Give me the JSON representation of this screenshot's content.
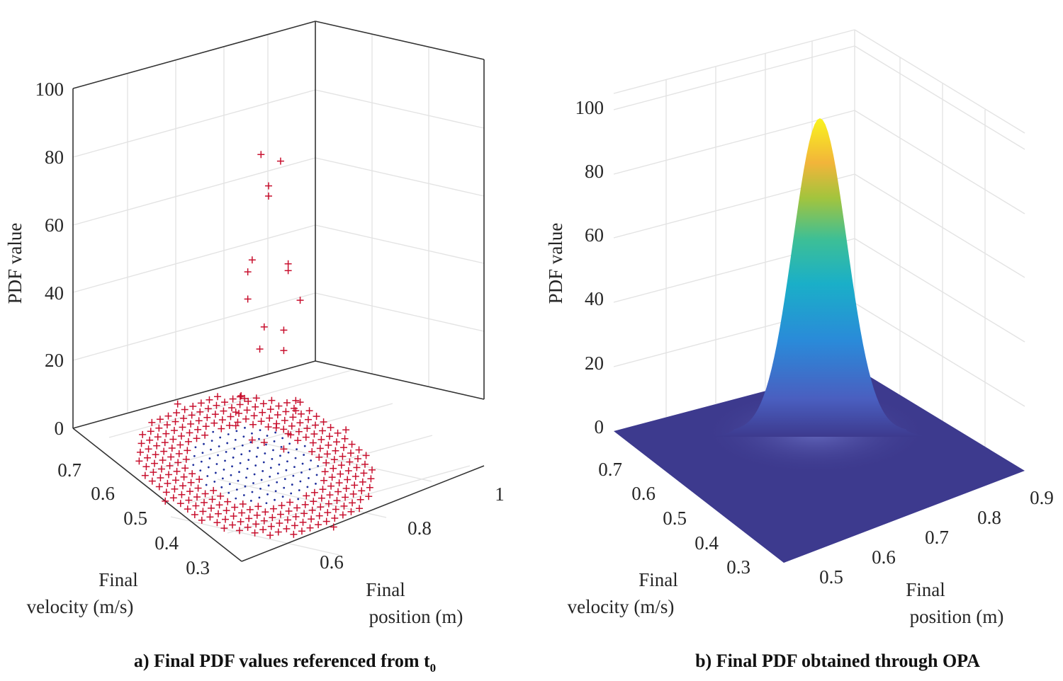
{
  "chart_data": [
    {
      "type": "scatter3d",
      "marker": "+",
      "marker_color": "#c8102e",
      "dot_color": "#1f2f9c",
      "zlabel": "PDF value",
      "xlabel_lines": [
        "Final",
        "position (m)"
      ],
      "ylabel_lines": [
        "Final",
        "velocity (m/s)"
      ],
      "zlim": [
        0,
        100
      ],
      "z_ticks": [
        "0",
        "20",
        "40",
        "60",
        "80",
        "100"
      ],
      "y_ticks": [
        "0.7",
        "0.6",
        "0.5",
        "0.4",
        "0.3"
      ],
      "x_ticks": [
        "0.6",
        "0.8",
        "1"
      ],
      "caption_main": "a) Final PDF values referenced from t",
      "caption_sub": "0",
      "elevated_points": [
        {
          "x": 0.66,
          "y": 0.48,
          "z": 92
        },
        {
          "x": 0.69,
          "y": 0.46,
          "z": 90
        },
        {
          "x": 0.67,
          "y": 0.47,
          "z": 83
        },
        {
          "x": 0.67,
          "y": 0.47,
          "z": 80
        },
        {
          "x": 0.64,
          "y": 0.48,
          "z": 62
        },
        {
          "x": 0.63,
          "y": 0.48,
          "z": 59
        },
        {
          "x": 0.7,
          "y": 0.45,
          "z": 60
        },
        {
          "x": 0.7,
          "y": 0.45,
          "z": 58
        },
        {
          "x": 0.63,
          "y": 0.48,
          "z": 51
        },
        {
          "x": 0.72,
          "y": 0.44,
          "z": 49
        },
        {
          "x": 0.66,
          "y": 0.47,
          "z": 42
        },
        {
          "x": 0.69,
          "y": 0.45,
          "z": 41
        },
        {
          "x": 0.65,
          "y": 0.47,
          "z": 36
        },
        {
          "x": 0.69,
          "y": 0.45,
          "z": 35
        },
        {
          "x": 0.62,
          "y": 0.49,
          "z": 22
        },
        {
          "x": 0.63,
          "y": 0.49,
          "z": 21
        },
        {
          "x": 0.61,
          "y": 0.49,
          "z": 18
        },
        {
          "x": 0.71,
          "y": 0.44,
          "z": 20
        },
        {
          "x": 0.72,
          "y": 0.44,
          "z": 19
        },
        {
          "x": 0.71,
          "y": 0.44,
          "z": 17
        },
        {
          "x": 0.61,
          "y": 0.49,
          "z": 14
        },
        {
          "x": 0.68,
          "y": 0.46,
          "z": 12
        },
        {
          "x": 0.7,
          "y": 0.45,
          "z": 10
        },
        {
          "x": 0.64,
          "y": 0.48,
          "z": 9
        },
        {
          "x": 0.66,
          "y": 0.47,
          "z": 8
        },
        {
          "x": 0.69,
          "y": 0.45,
          "z": 6
        }
      ]
    },
    {
      "type": "surface3d",
      "colormap": "parula",
      "base_color": "#3d3a8e",
      "zlabel": "PDF value",
      "xlabel_lines": [
        "Final",
        "position (m)"
      ],
      "ylabel_lines": [
        "Final",
        "velocity (m/s)"
      ],
      "zlim": [
        0,
        100
      ],
      "z_ticks": [
        "0",
        "20",
        "40",
        "60",
        "80",
        "100"
      ],
      "y_ticks": [
        "0.7",
        "0.6",
        "0.5",
        "0.4",
        "0.3"
      ],
      "x_ticks": [
        "0.5",
        "0.6",
        "0.7",
        "0.8",
        "0.9"
      ],
      "peak": 98,
      "caption": "b) Final PDF obtained through OPA"
    }
  ]
}
